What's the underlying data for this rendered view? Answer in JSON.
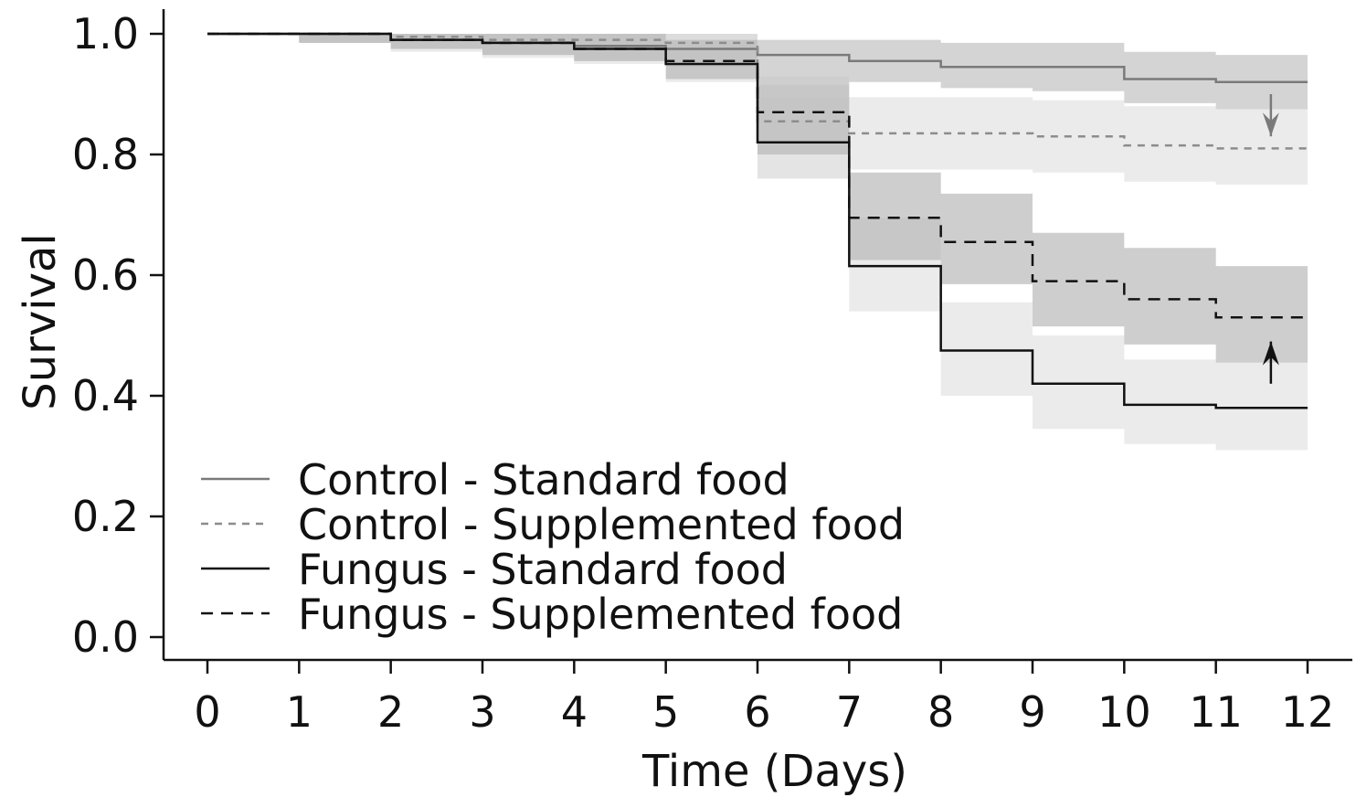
{
  "chart_data": {
    "type": "line",
    "title": "",
    "xlabel": "Time (Days)",
    "ylabel": "Survival",
    "xlim": [
      0,
      12
    ],
    "ylim": [
      0.0,
      1.0
    ],
    "x_ticks": [
      0,
      1,
      2,
      3,
      4,
      5,
      6,
      7,
      8,
      9,
      10,
      11,
      12
    ],
    "x_tick_labels": [
      "0",
      "1",
      "2",
      "3",
      "4",
      "5",
      "6",
      "7",
      "8",
      "9",
      "10",
      "11",
      "12"
    ],
    "y_ticks": [
      0.0,
      0.2,
      0.4,
      0.6,
      0.8,
      1.0
    ],
    "y_tick_labels": [
      "0.0",
      "0.2",
      "0.4",
      "0.6",
      "0.8",
      "1.0"
    ],
    "grid": false,
    "legend_position": "bottom-left",
    "step": true,
    "series": [
      {
        "name": "Control - Standard food",
        "color": "#7a7a7a",
        "dash": "solid",
        "band_color": "#bdbdbd",
        "x": [
          0,
          1,
          2,
          3,
          4,
          5,
          6,
          7,
          8,
          9,
          10,
          11,
          12
        ],
        "y": [
          1.0,
          1.0,
          0.99,
          0.985,
          0.98,
          0.975,
          0.965,
          0.955,
          0.945,
          0.945,
          0.925,
          0.92,
          0.92
        ],
        "lower": [
          1.0,
          0.985,
          0.975,
          0.965,
          0.955,
          0.945,
          0.93,
          0.92,
          0.91,
          0.905,
          0.885,
          0.875,
          0.875
        ],
        "upper": [
          1.0,
          1.0,
          1.0,
          1.0,
          1.0,
          1.0,
          0.99,
          0.99,
          0.985,
          0.985,
          0.97,
          0.965,
          0.965
        ]
      },
      {
        "name": "Control - Supplemented food",
        "color": "#8c8c8c",
        "dash": "short-dash",
        "band_color": "#e0e0e0",
        "x": [
          0,
          1,
          2,
          3,
          4,
          5,
          6,
          7,
          8,
          9,
          10,
          11,
          12
        ],
        "y": [
          1.0,
          1.0,
          0.995,
          0.99,
          0.99,
          0.985,
          0.855,
          0.835,
          0.835,
          0.83,
          0.815,
          0.81,
          0.81
        ],
        "lower": [
          1.0,
          0.985,
          0.975,
          0.965,
          0.955,
          0.95,
          0.76,
          0.775,
          0.775,
          0.77,
          0.755,
          0.75,
          0.75
        ],
        "upper": [
          1.0,
          1.0,
          1.0,
          1.0,
          1.0,
          1.0,
          0.915,
          0.895,
          0.895,
          0.89,
          0.88,
          0.875,
          0.875
        ]
      },
      {
        "name": "Fungus - Standard food",
        "color": "#111111",
        "dash": "solid",
        "band_color": "#e0e0e0",
        "x": [
          0,
          1,
          2,
          3,
          4,
          5,
          6,
          7,
          8,
          9,
          10,
          11,
          12
        ],
        "y": [
          1.0,
          1.0,
          0.99,
          0.985,
          0.975,
          0.95,
          0.82,
          0.615,
          0.475,
          0.42,
          0.385,
          0.38,
          0.38
        ],
        "lower": [
          1.0,
          0.985,
          0.97,
          0.96,
          0.95,
          0.92,
          0.76,
          0.54,
          0.4,
          0.345,
          0.32,
          0.31,
          0.31
        ],
        "upper": [
          1.0,
          1.0,
          1.0,
          1.0,
          1.0,
          0.99,
          0.895,
          0.695,
          0.555,
          0.5,
          0.46,
          0.455,
          0.455
        ]
      },
      {
        "name": "Fungus - Supplemented food",
        "color": "#111111",
        "dash": "long-dash",
        "band_color": "#b4b4b4",
        "x": [
          0,
          1,
          2,
          3,
          4,
          5,
          6,
          7,
          8,
          9,
          10,
          11,
          12
        ],
        "y": [
          1.0,
          1.0,
          0.99,
          0.985,
          0.975,
          0.955,
          0.87,
          0.695,
          0.655,
          0.59,
          0.56,
          0.53,
          0.53
        ],
        "lower": [
          1.0,
          0.985,
          0.975,
          0.965,
          0.955,
          0.925,
          0.8,
          0.625,
          0.585,
          0.515,
          0.485,
          0.455,
          0.455
        ],
        "upper": [
          1.0,
          1.0,
          1.0,
          1.0,
          1.0,
          0.99,
          0.93,
          0.77,
          0.735,
          0.67,
          0.645,
          0.615,
          0.615
        ]
      }
    ],
    "annotations": [
      {
        "type": "arrow",
        "direction": "down",
        "x": 11.6,
        "y_from": 0.9,
        "y_to": 0.83,
        "color": "#7a7a7a"
      },
      {
        "type": "arrow",
        "direction": "up",
        "x": 11.6,
        "y_from": 0.42,
        "y_to": 0.49,
        "color": "#111111"
      }
    ]
  }
}
